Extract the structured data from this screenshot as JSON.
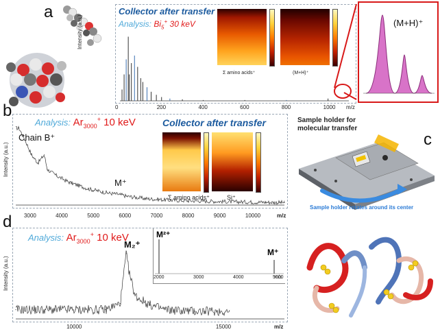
{
  "panel_a": {
    "letter": "a",
    "title": "Collector after transfer",
    "analysis_prefix": "Analysis:",
    "analysis_ion": "Bi",
    "analysis_ion_sub": "5",
    "analysis_ion_sup": "+",
    "analysis_energy": "30 keV",
    "ylabel": "Intensity (a.u.)",
    "xlabel": "m/z",
    "xticks": [
      "0",
      "200",
      "400",
      "600",
      "800",
      "1000"
    ],
    "inset1_label": "Σ amino acids⁺",
    "inset2_label": "(M+H)⁺",
    "zoom_label": "(M+H)⁺"
  },
  "panel_b": {
    "letter": "b",
    "analysis_prefix": "Analysis:",
    "analysis_ion": "Ar",
    "analysis_ion_sub": "3000",
    "analysis_ion_sup": "+",
    "analysis_energy": "10 keV",
    "title": "Collector after transfer",
    "peak1": "Chain B⁺",
    "peak2": "M⁺",
    "ylabel": "Intensity (a.u.)",
    "xlabel": "m/z",
    "xticks": [
      "3000",
      "4000",
      "5000",
      "6000",
      "7000",
      "8000",
      "9000",
      "10000"
    ],
    "inset1_label": "Σ amino acids⁺",
    "inset2_label": "Si⁺"
  },
  "panel_c": {
    "letter": "c",
    "label_holder": "Sample holder for molecular transfer",
    "label_rotate": "Sample holder rotates around its center"
  },
  "panel_d": {
    "letter": "d",
    "analysis_prefix": "Analysis:",
    "analysis_ion": "Ar",
    "analysis_ion_sub": "3000",
    "analysis_ion_sup": "+",
    "analysis_energy": "10 keV",
    "peak_main": "M₂⁺",
    "ylabel": "Intensity (a.u.)",
    "xlabel": "m/z",
    "xticks": [
      "10000",
      "15000"
    ],
    "inset_peak1": "M²⁺",
    "inset_peak2": "M⁺",
    "inset_xticks": [
      "2000",
      "3000",
      "4000",
      "5000"
    ],
    "inset_xlabel": "m/z"
  },
  "chart_data": [
    {
      "type": "line",
      "panel": "a",
      "xlabel": "m/z",
      "ylabel": "Intensity (a.u.)",
      "xlim": [
        0,
        1100
      ],
      "x": [
        10,
        20,
        30,
        40,
        45,
        55,
        70,
        85,
        100,
        110,
        130,
        150,
        175,
        200,
        240,
        300,
        400,
        600,
        800,
        1000
      ],
      "values": [
        0.15,
        0.35,
        0.55,
        0.85,
        0.35,
        0.5,
        0.6,
        0.45,
        0.3,
        0.25,
        0.18,
        0.12,
        0.08,
        0.05,
        0.03,
        0.02,
        0.01,
        0.01,
        0.01,
        0.03
      ]
    },
    {
      "type": "line",
      "panel": "b",
      "xlabel": "m/z",
      "ylabel": "Intensity (a.u.)",
      "xlim": [
        2500,
        11000
      ],
      "x": [
        2600,
        2800,
        3000,
        3200,
        3400,
        3500,
        3800,
        4200,
        4800,
        5400,
        5800,
        6000,
        6600,
        7400,
        8400,
        9400,
        10400,
        11000
      ],
      "values": [
        0.95,
        0.8,
        0.62,
        0.52,
        0.62,
        0.44,
        0.36,
        0.28,
        0.2,
        0.15,
        0.13,
        0.11,
        0.08,
        0.06,
        0.05,
        0.04,
        0.035,
        0.03
      ]
    },
    {
      "type": "line",
      "panel": "d",
      "xlabel": "m/z",
      "ylabel": "Intensity (a.u.)",
      "xlim": [
        8000,
        17000
      ],
      "x": [
        8000,
        9000,
        10000,
        11000,
        11500,
        11700,
        11800,
        12000,
        12500,
        13000,
        14000,
        14300
      ],
      "values": [
        0.12,
        0.12,
        0.12,
        0.12,
        0.2,
        0.85,
        0.6,
        0.3,
        0.18,
        0.12,
        0.1,
        0.1
      ]
    }
  ],
  "colors": {
    "title_blue": "#1b5a9e",
    "analysis_blue": "#4fa9d9",
    "ion_red": "#e01a1a",
    "zoom_red": "#d81818",
    "zoom_fill": "#d873c8"
  }
}
